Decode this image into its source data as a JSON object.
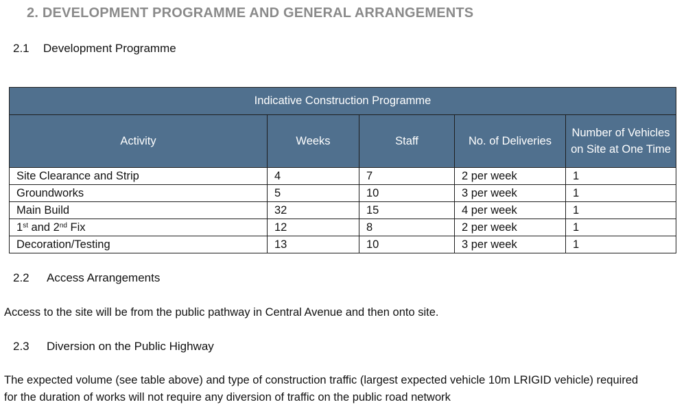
{
  "section": {
    "number": "2.",
    "title": "DEVELOPMENT PROGRAMME AND GENERAL ARRANGEMENTS"
  },
  "sub1": {
    "number": "2.1",
    "title": "Development Programme"
  },
  "table": {
    "title": "Indicative Construction Programme",
    "headers": [
      "Activity",
      "Weeks",
      "Staff",
      "No. of Deliveries",
      "Number of Vehicles on Site at One Time"
    ],
    "rows": [
      {
        "activity": "Site Clearance and Strip",
        "weeks": "4",
        "staff": "7",
        "deliveries": "2 per week",
        "vehicles": "1"
      },
      {
        "activity": "Groundworks",
        "weeks": "5",
        "staff": "10",
        "deliveries": "3 per week",
        "vehicles": "1"
      },
      {
        "activity": "Main Build",
        "weeks": "32",
        "staff": "15",
        "deliveries": "4 per week",
        "vehicles": "1"
      },
      {
        "activity_parts": [
          "1",
          "st",
          " and 2",
          "nd",
          " Fix"
        ],
        "weeks": "12",
        "staff": "8",
        "deliveries": "2 per week",
        "vehicles": "1"
      },
      {
        "activity": "Decoration/Testing",
        "weeks": "13",
        "staff": "10",
        "deliveries": "3 per week",
        "vehicles": "1"
      }
    ]
  },
  "sub2": {
    "number": "2.2",
    "title": "Access Arrangements"
  },
  "access_text": "Access to the site will be from the public pathway in Central Avenue and then onto site.",
  "sub3": {
    "number": "2.3",
    "title": "Diversion on the Public Highway"
  },
  "diversion_text": [
    "The expected volume (see table above) and type of construction traffic (largest expected vehicle 10m LRIGID vehicle) required",
    "for the duration of works will not require any diversion of traffic on the public road network"
  ]
}
